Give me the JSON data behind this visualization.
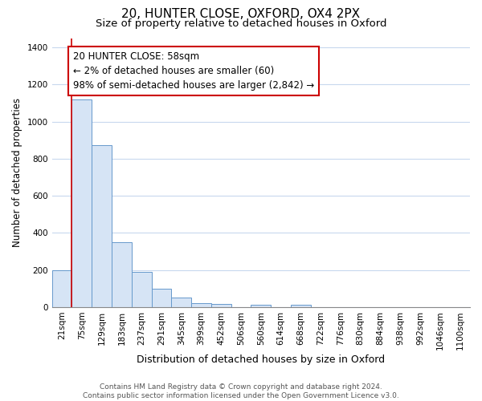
{
  "title": "20, HUNTER CLOSE, OXFORD, OX4 2PX",
  "subtitle": "Size of property relative to detached houses in Oxford",
  "xlabel": "Distribution of detached houses by size in Oxford",
  "ylabel": "Number of detached properties",
  "bar_fill_color": "#d6e4f5",
  "bar_edge_color": "#6699cc",
  "marker_line_color": "#cc0000",
  "annotation_box_edge_color": "#cc0000",
  "categories": [
    "21sqm",
    "75sqm",
    "129sqm",
    "183sqm",
    "237sqm",
    "291sqm",
    "345sqm",
    "399sqm",
    "452sqm",
    "506sqm",
    "560sqm",
    "614sqm",
    "668sqm",
    "722sqm",
    "776sqm",
    "830sqm",
    "884sqm",
    "938sqm",
    "992sqm",
    "1046sqm",
    "1100sqm"
  ],
  "values": [
    200,
    1120,
    875,
    350,
    190,
    100,
    52,
    22,
    15,
    0,
    13,
    0,
    13,
    0,
    0,
    0,
    0,
    0,
    0,
    0,
    0
  ],
  "ylim": [
    0,
    1450
  ],
  "yticks": [
    0,
    200,
    400,
    600,
    800,
    1000,
    1200,
    1400
  ],
  "marker_at_index": 1,
  "annotation_text": "20 HUNTER CLOSE: 58sqm\n← 2% of detached houses are smaller (60)\n98% of semi-detached houses are larger (2,842) →",
  "footer_line1": "Contains HM Land Registry data © Crown copyright and database right 2024.",
  "footer_line2": "Contains public sector information licensed under the Open Government Licence v3.0.",
  "background_color": "#ffffff",
  "grid_color": "#c8d8ee",
  "title_fontsize": 11,
  "subtitle_fontsize": 9.5,
  "xlabel_fontsize": 9,
  "ylabel_fontsize": 8.5,
  "tick_fontsize": 7.5,
  "annotation_fontsize": 8.5,
  "footer_fontsize": 6.5
}
